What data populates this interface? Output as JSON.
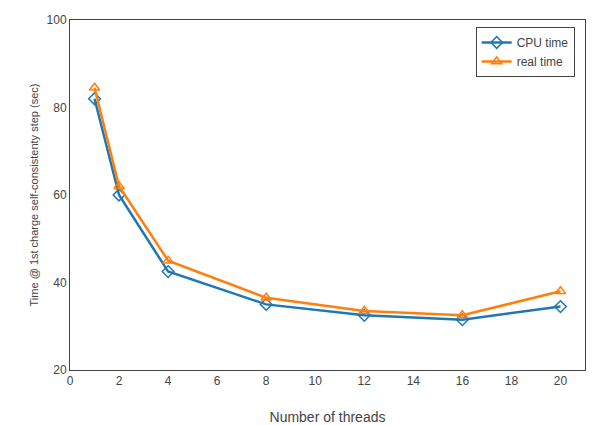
{
  "chart_data": {
    "type": "line",
    "xlabel": "Number of threads",
    "ylabel": "Time @ 1st charge self-consistenty step (sec)",
    "x": [
      1,
      2,
      4,
      8,
      12,
      16,
      20
    ],
    "series": [
      {
        "name": "CPU time",
        "values": [
          82.0,
          60.0,
          42.5,
          35.0,
          32.5,
          31.5,
          34.5
        ],
        "marker": "diamond"
      },
      {
        "name": "real time",
        "values": [
          84.5,
          62.0,
          45.0,
          36.5,
          33.5,
          32.5,
          38.0
        ],
        "marker": "triangle-up"
      }
    ],
    "xlim": [
      0,
      21
    ],
    "ylim": [
      20,
      100
    ],
    "xticks": [
      0,
      2,
      4,
      6,
      8,
      10,
      12,
      14,
      16,
      18,
      20
    ],
    "yticks": [
      20,
      40,
      60,
      80,
      100
    ],
    "grid": false,
    "legend": "upper right"
  }
}
